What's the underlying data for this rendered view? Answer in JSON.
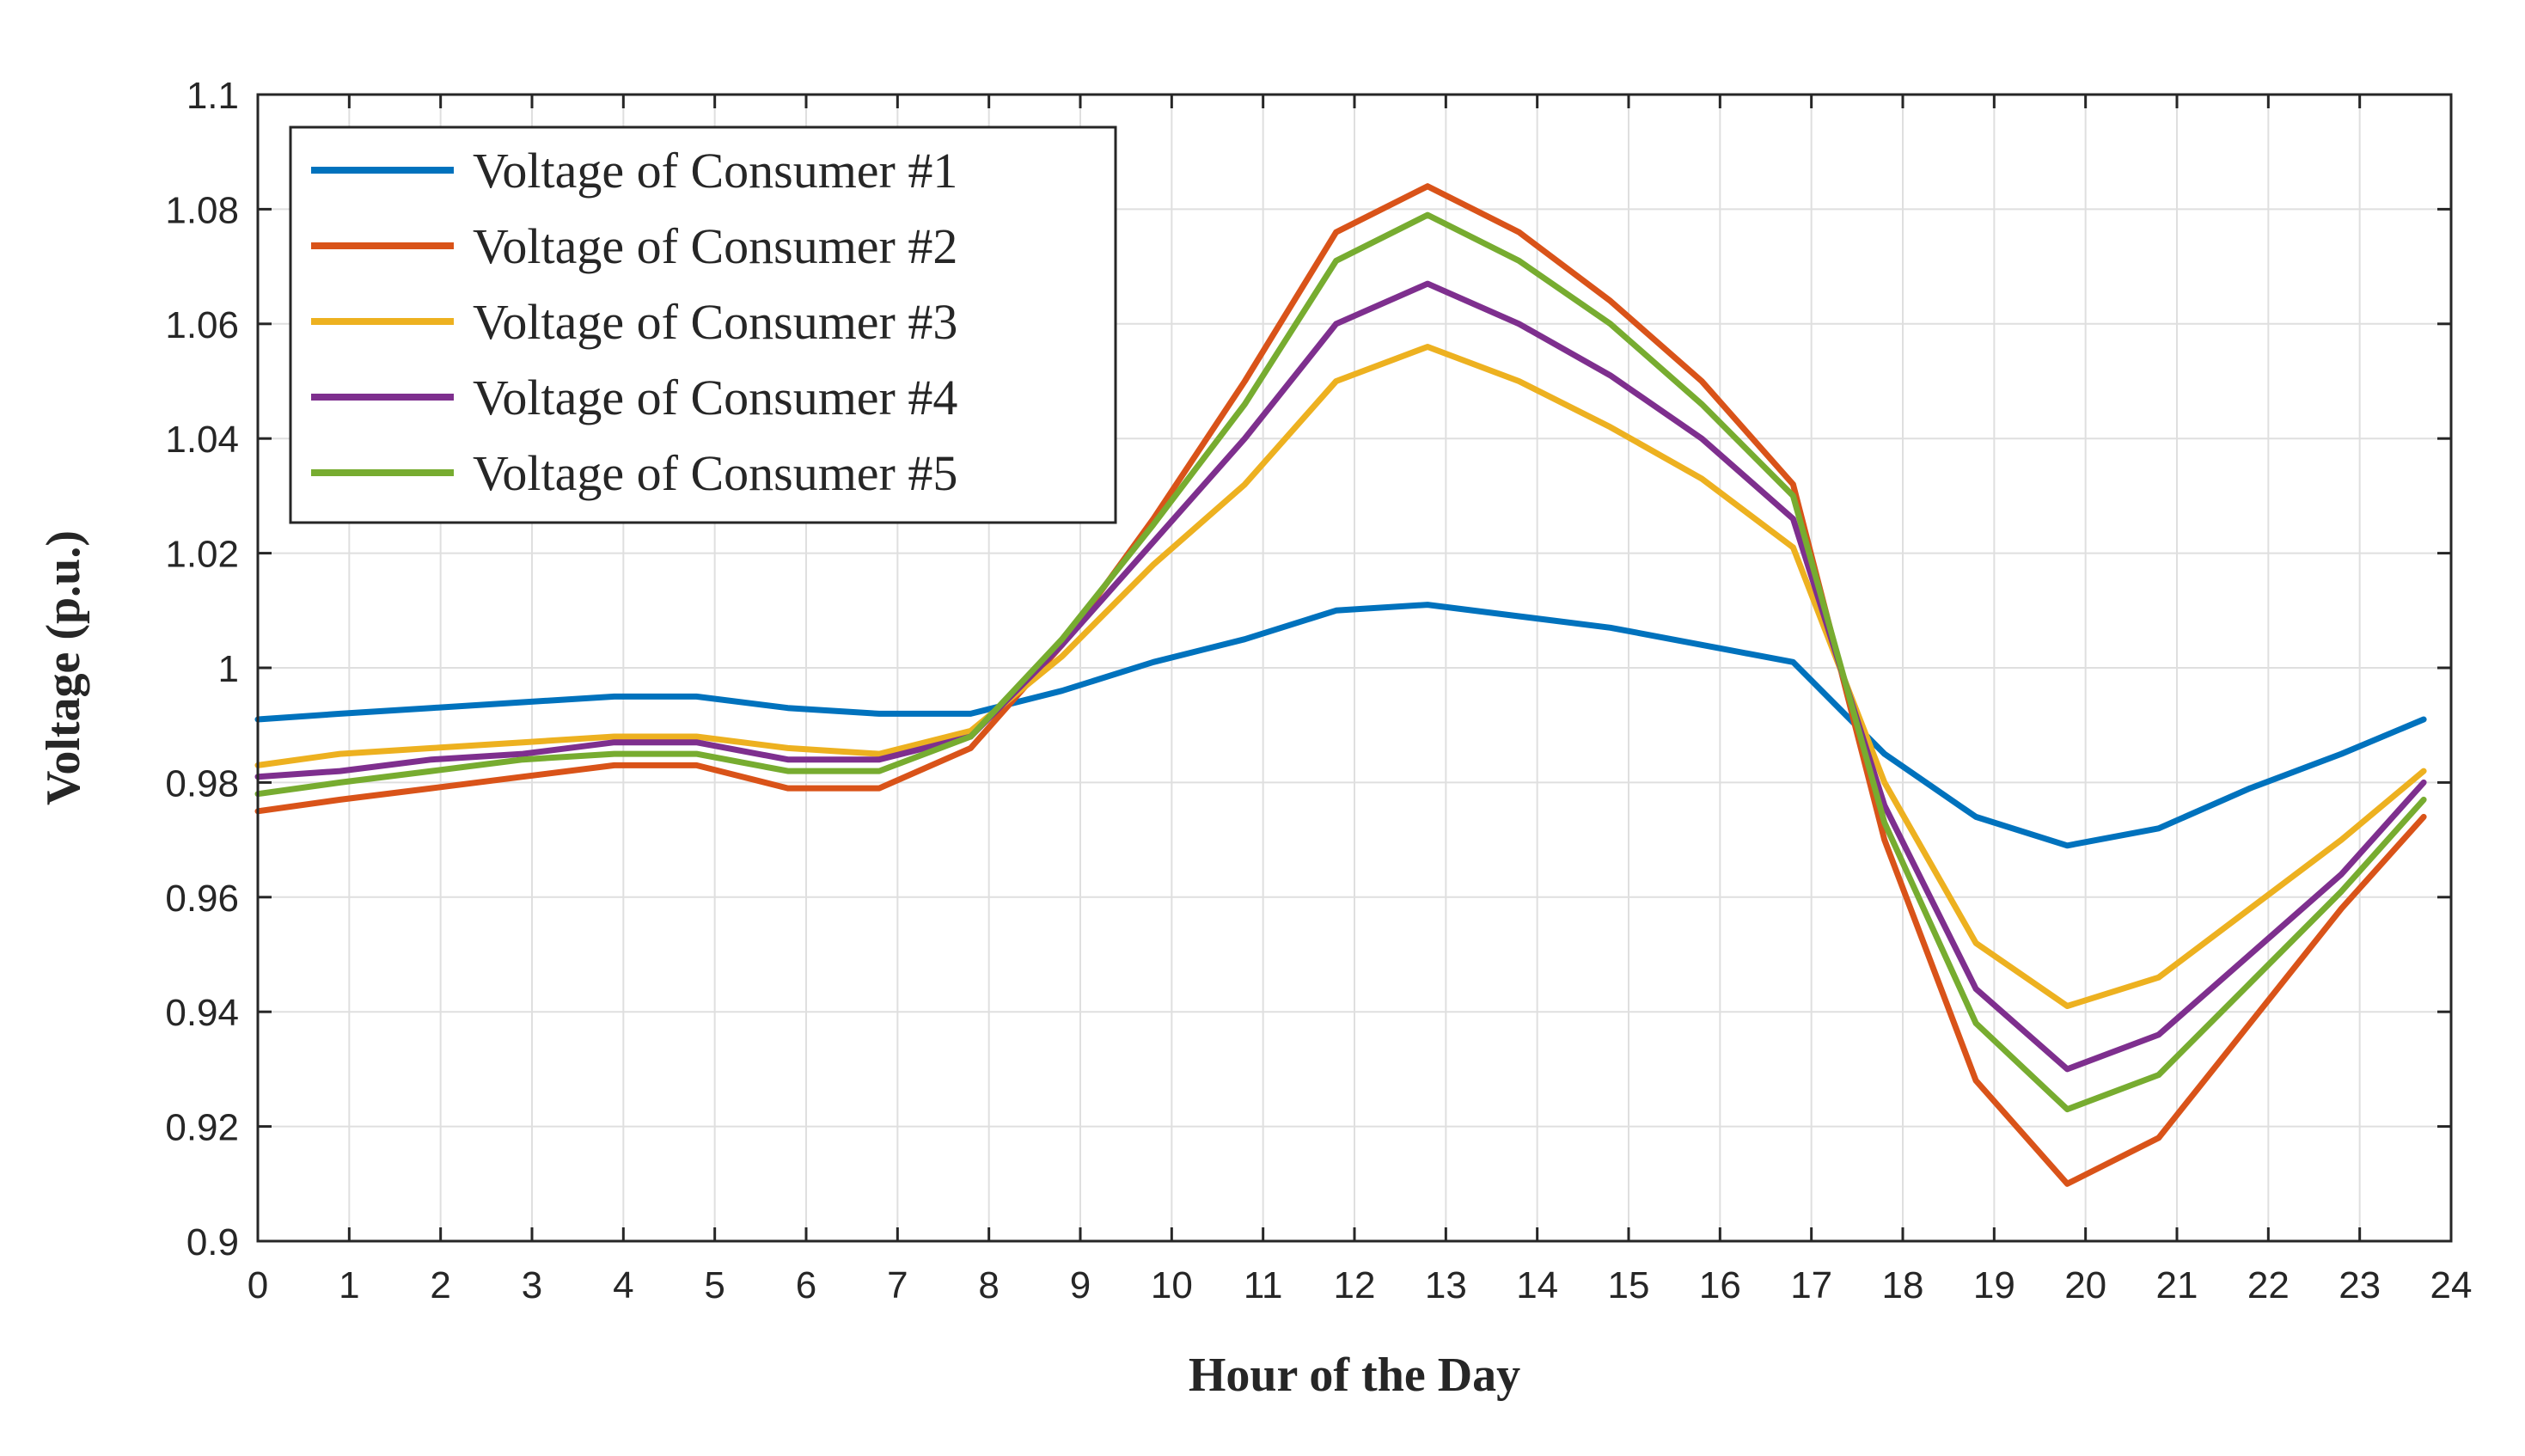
{
  "chart_data": {
    "type": "line",
    "title": "",
    "xlabel": "Hour of the Day",
    "ylabel": "Voltage (p.u.)",
    "xlim": [
      0,
      24
    ],
    "ylim": [
      0.9,
      1.1
    ],
    "grid": true,
    "legend_position": "top-left",
    "x_ticks": [
      "0",
      "1",
      "2",
      "3",
      "4",
      "5",
      "6",
      "7",
      "8",
      "9",
      "10",
      "11",
      "12",
      "13",
      "14",
      "15",
      "16",
      "17",
      "18",
      "19",
      "20",
      "21",
      "22",
      "23",
      "24"
    ],
    "y_ticks": [
      "0.9",
      "0.92",
      "0.94",
      "0.96",
      "0.98",
      "1",
      "1.02",
      "1.04",
      "1.06",
      "1.08",
      "1.1"
    ],
    "x": [
      0,
      0.9,
      1.9,
      2.9,
      3.9,
      4.8,
      5.8,
      6.8,
      7.8,
      8.8,
      9.8,
      10.8,
      11.8,
      12.8,
      13.8,
      14.8,
      15.8,
      16.8,
      17.8,
      18.8,
      19.8,
      20.8,
      21.8,
      22.8,
      23.7
    ],
    "series": [
      {
        "name": "Voltage of Consumer #1",
        "color": "#0072BD",
        "values": [
          0.991,
          0.992,
          0.993,
          0.994,
          0.995,
          0.995,
          0.993,
          0.992,
          0.992,
          0.996,
          1.001,
          1.005,
          1.01,
          1.011,
          1.009,
          1.007,
          1.004,
          1.001,
          0.985,
          0.974,
          0.969,
          0.972,
          0.979,
          0.985,
          0.991
        ]
      },
      {
        "name": "Voltage of Consumer #2",
        "color": "#D95319",
        "values": [
          0.975,
          0.977,
          0.979,
          0.981,
          0.983,
          0.983,
          0.979,
          0.979,
          0.986,
          1.004,
          1.026,
          1.05,
          1.076,
          1.084,
          1.076,
          1.064,
          1.05,
          1.032,
          0.97,
          0.928,
          0.91,
          0.918,
          0.938,
          0.958,
          0.974
        ]
      },
      {
        "name": "Voltage of Consumer #3",
        "color": "#EDB120",
        "values": [
          0.983,
          0.985,
          0.986,
          0.987,
          0.988,
          0.988,
          0.986,
          0.985,
          0.989,
          1.002,
          1.018,
          1.032,
          1.05,
          1.056,
          1.05,
          1.042,
          1.033,
          1.021,
          0.98,
          0.952,
          0.941,
          0.946,
          0.958,
          0.97,
          0.982
        ]
      },
      {
        "name": "Voltage of Consumer #4",
        "color": "#7E2F8E",
        "values": [
          0.981,
          0.982,
          0.984,
          0.985,
          0.987,
          0.987,
          0.984,
          0.984,
          0.988,
          1.004,
          1.022,
          1.04,
          1.06,
          1.067,
          1.06,
          1.051,
          1.04,
          1.026,
          0.976,
          0.944,
          0.93,
          0.936,
          0.95,
          0.964,
          0.98
        ]
      },
      {
        "name": "Voltage of Consumer #5",
        "color": "#77AC30",
        "values": [
          0.978,
          0.98,
          0.982,
          0.984,
          0.985,
          0.985,
          0.982,
          0.982,
          0.988,
          1.005,
          1.025,
          1.046,
          1.071,
          1.079,
          1.071,
          1.06,
          1.046,
          1.03,
          0.973,
          0.938,
          0.923,
          0.929,
          0.945,
          0.961,
          0.977
        ]
      }
    ]
  }
}
